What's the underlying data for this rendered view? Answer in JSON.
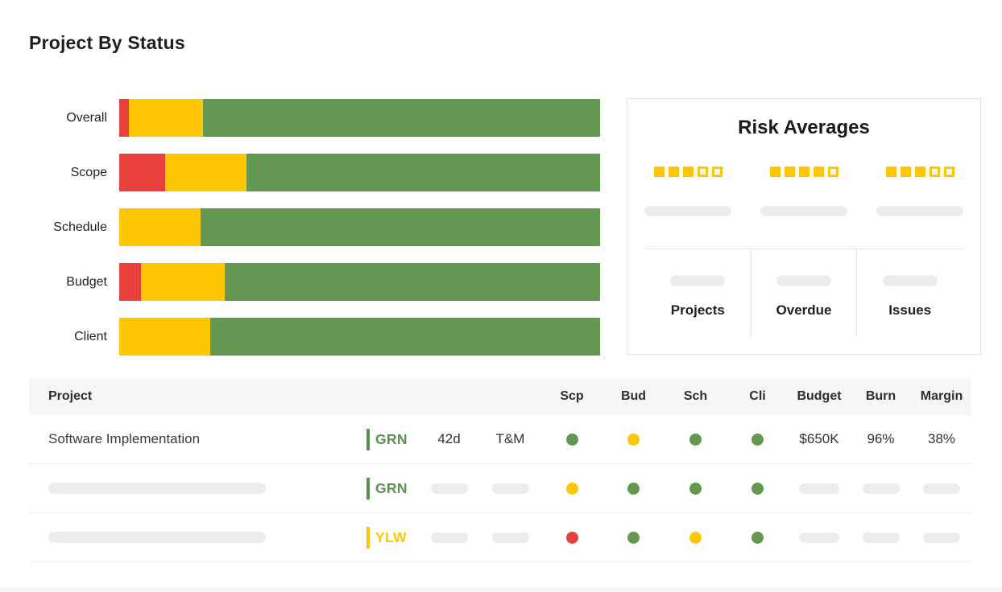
{
  "page_title": "Project By Status",
  "colors": {
    "red": "#E8403D",
    "yellow": "#FEC701",
    "green": "#639852",
    "status_green": "#5A9150",
    "status_yellow": "#FEC701",
    "skeleton_gray": "#ECECEC"
  },
  "chart_data": {
    "type": "bar",
    "stacked": true,
    "orientation": "horizontal",
    "title": "Project By Status",
    "categories": [
      "Overall",
      "Scope",
      "Schedule",
      "Budget",
      "Client"
    ],
    "series": [
      {
        "name": "Red",
        "color": "#E8403D",
        "values": [
          2.0,
          9.5,
          0,
          4.6,
          0
        ]
      },
      {
        "name": "Yellow",
        "color": "#FEC701",
        "values": [
          15.5,
          17.0,
          17.0,
          17.3,
          19.0
        ]
      },
      {
        "name": "Green",
        "color": "#639852",
        "values": [
          82.5,
          73.5,
          83.0,
          78.1,
          81.0
        ]
      }
    ],
    "unit": "percent_of_bar",
    "xlim": [
      0,
      100
    ],
    "grid": false,
    "legend": false
  },
  "risk_panel": {
    "title": "Risk Averages",
    "rating_color": "#FEC701",
    "ratings": [
      {
        "filled": 3,
        "total": 5
      },
      {
        "filled": 4,
        "total": 5
      },
      {
        "filled": 3,
        "total": 5
      }
    ],
    "stats": [
      {
        "label": "Projects"
      },
      {
        "label": "Overdue"
      },
      {
        "label": "Issues"
      }
    ]
  },
  "table": {
    "project_header": "Project",
    "metric_headers": [
      "Scp",
      "Bud",
      "Sch",
      "Cli",
      "Budget",
      "Burn",
      "Margin"
    ],
    "rows": [
      {
        "name": "Software Implementation",
        "status_label": "GRN",
        "status_color": "#5A9150",
        "duration": "42d",
        "contract_type": "T&M",
        "dots": [
          "green",
          "yellow",
          "green",
          "green"
        ],
        "budget": "$650K",
        "burn": "96%",
        "margin": "38%",
        "skeleton": false
      },
      {
        "status_label": "GRN",
        "status_color": "#5A9150",
        "dots": [
          "yellow",
          "green",
          "green",
          "green"
        ],
        "skeleton": true
      },
      {
        "status_label": "YLW",
        "status_color": "#FEC701",
        "dots": [
          "red",
          "green",
          "yellow",
          "green"
        ],
        "skeleton": true
      }
    ]
  }
}
